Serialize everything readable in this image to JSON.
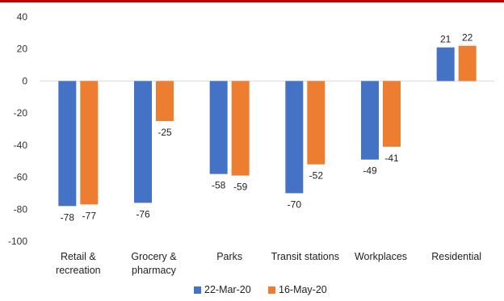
{
  "chart_data": {
    "type": "bar",
    "categories": [
      [
        "Retail &",
        "recreation"
      ],
      [
        "Grocery &",
        "pharmacy"
      ],
      [
        "Parks"
      ],
      [
        "Transit stations"
      ],
      [
        "Workplaces"
      ],
      [
        "Residential"
      ]
    ],
    "series": [
      {
        "name": "22-Mar-20",
        "color": "#4472c4",
        "values": [
          -78,
          -76,
          -58,
          -70,
          -49,
          21
        ]
      },
      {
        "name": "16-May-20",
        "color": "#ed7d31",
        "values": [
          -77,
          -25,
          -59,
          -52,
          -41,
          22
        ]
      }
    ],
    "ylim": [
      -100,
      40
    ],
    "yticks": [
      40,
      20,
      0,
      -20,
      -40,
      -60,
      -80,
      -100
    ],
    "grid": false,
    "legend": "bottom-center",
    "title": "",
    "xlabel": "",
    "ylabel": ""
  },
  "accent_color": "#c00000"
}
